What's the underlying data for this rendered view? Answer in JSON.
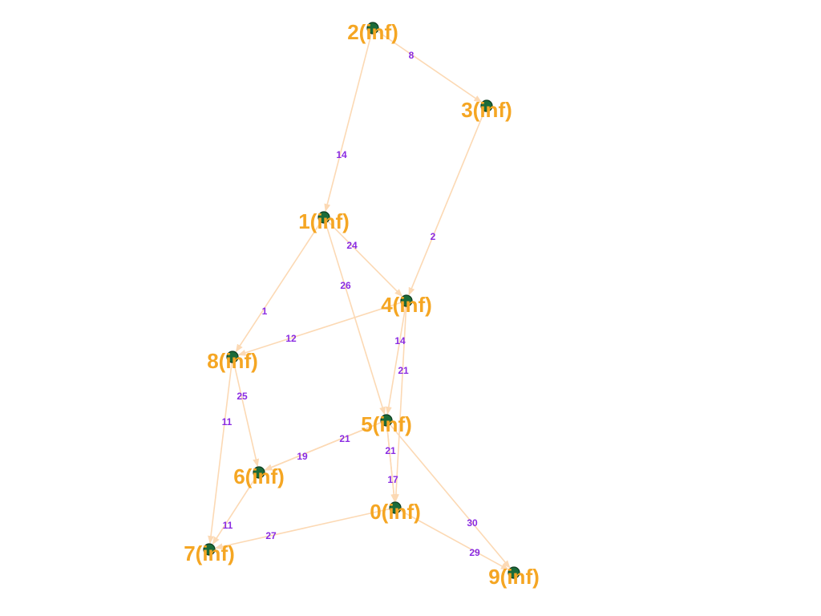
{
  "graph": {
    "node_color": "#1b6b3a",
    "label_color": "#f5a623",
    "edge_color": "#fcd9b4",
    "weight_color": "#8a2be2",
    "nodes": [
      {
        "id": "0",
        "label": "0(inf)"
      },
      {
        "id": "1",
        "label": "1(inf)"
      },
      {
        "id": "2",
        "label": "2(inf)"
      },
      {
        "id": "3",
        "label": "3(inf)"
      },
      {
        "id": "4",
        "label": "4(inf)"
      },
      {
        "id": "5",
        "label": "5(inf)"
      },
      {
        "id": "6",
        "label": "6(inf)"
      },
      {
        "id": "7",
        "label": "7(inf)"
      },
      {
        "id": "8",
        "label": "8(inf)"
      },
      {
        "id": "9",
        "label": "9(inf)"
      }
    ],
    "edges": [
      {
        "from": "2",
        "to": "3",
        "weight": "8"
      },
      {
        "from": "2",
        "to": "1",
        "weight": "14"
      },
      {
        "from": "3",
        "to": "4",
        "weight": "2"
      },
      {
        "from": "1",
        "to": "4",
        "weight": "24"
      },
      {
        "from": "1",
        "to": "5",
        "weight": "26"
      },
      {
        "from": "1",
        "to": "8",
        "weight": "1"
      },
      {
        "from": "4",
        "to": "8",
        "weight": "12"
      },
      {
        "from": "4",
        "to": "5",
        "weight": "14"
      },
      {
        "from": "4",
        "to": "0",
        "weight": "21"
      },
      {
        "from": "8",
        "to": "6",
        "weight": "25"
      },
      {
        "from": "8",
        "to": "7",
        "weight": "11"
      },
      {
        "from": "5",
        "to": "6",
        "weight": "21"
      },
      {
        "from": "5",
        "to": "6",
        "weight": "19"
      },
      {
        "from": "5",
        "to": "0",
        "weight": "21"
      },
      {
        "from": "5",
        "to": "0",
        "weight": "17"
      },
      {
        "from": "5",
        "to": "9",
        "weight": "30"
      },
      {
        "from": "6",
        "to": "7",
        "weight": "11"
      },
      {
        "from": "0",
        "to": "7",
        "weight": "27"
      },
      {
        "from": "0",
        "to": "9",
        "weight": "29"
      }
    ]
  }
}
